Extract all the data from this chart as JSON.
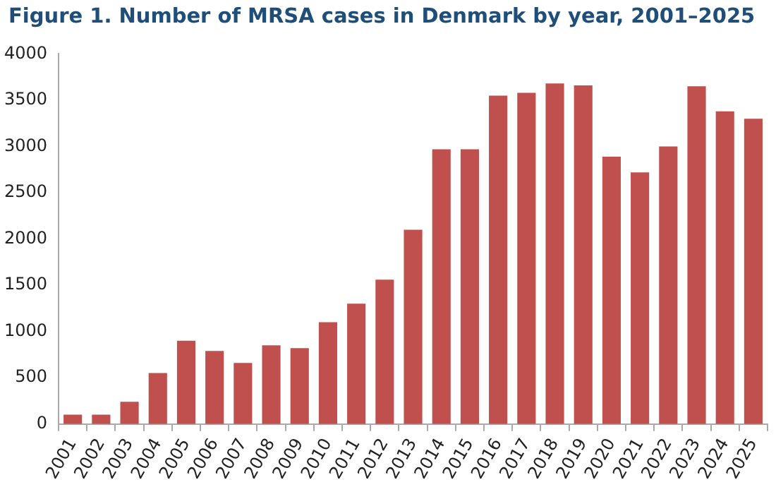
{
  "chart_data": {
    "type": "bar",
    "title": "Figure 1. Number of MRSA cases in Denmark by year, 2001–2025",
    "categories": [
      "2001",
      "2002",
      "2003",
      "2004",
      "2005",
      "2006",
      "2007",
      "2008",
      "2009",
      "2010",
      "2011",
      "2012",
      "2013",
      "2014",
      "2015",
      "2016",
      "2017",
      "2018",
      "2019",
      "2020",
      "2021",
      "2022",
      "2023",
      "2024",
      "2025"
    ],
    "values": [
      100,
      100,
      240,
      550,
      900,
      790,
      660,
      850,
      820,
      1100,
      1300,
      1560,
      2100,
      2970,
      2970,
      3550,
      3580,
      3680,
      3660,
      2890,
      2720,
      3000,
      3650,
      3380,
      3300
    ],
    "color": "#c0504d",
    "ylim": [
      0,
      4000
    ],
    "yticks": [
      0,
      500,
      1000,
      1500,
      2000,
      2500,
      3000,
      3500,
      4000
    ],
    "grid": false,
    "legend": false
  }
}
